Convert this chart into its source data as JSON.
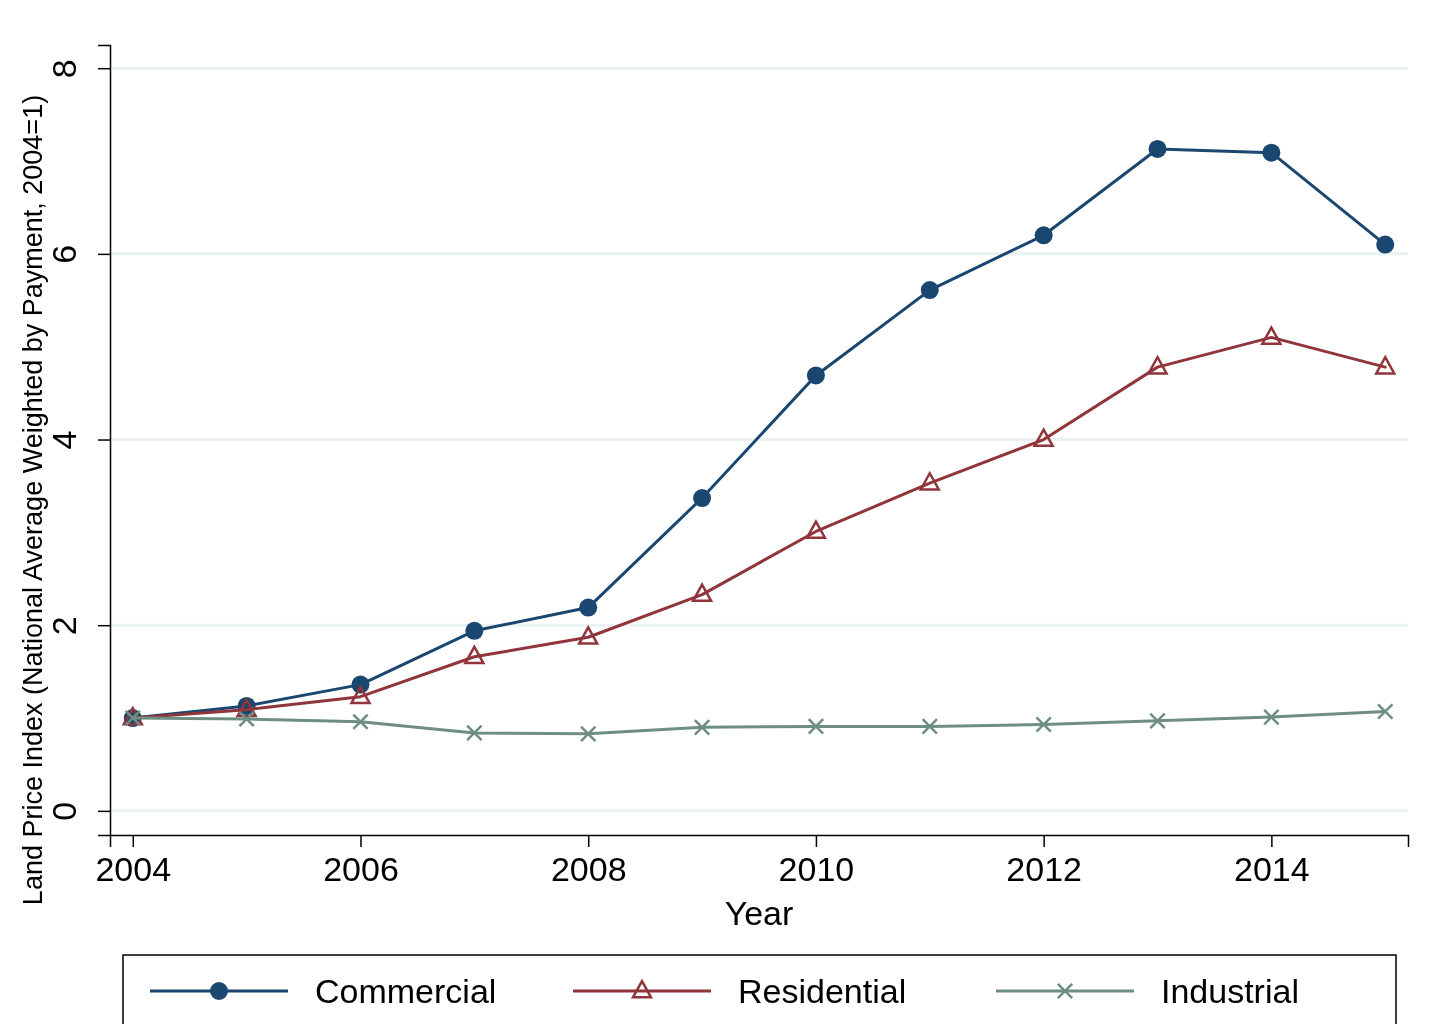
{
  "chart_data": {
    "type": "line",
    "xlabel": "Year",
    "ylabel": "Land Price Index (National Average Weighted by Payment, 2004=1)",
    "x": [
      2004,
      2005,
      2006,
      2007,
      2008,
      2009,
      2010,
      2011,
      2012,
      2013,
      2014,
      2015
    ],
    "series": [
      {
        "name": "Commercial",
        "color": "#1a476f",
        "marker": "circle",
        "values": [
          1.0,
          1.13,
          1.36,
          1.94,
          2.19,
          3.37,
          4.69,
          5.61,
          6.2,
          7.13,
          7.09,
          6.1
        ]
      },
      {
        "name": "Residential",
        "color": "#90353b",
        "marker": "triangle",
        "values": [
          1.0,
          1.09,
          1.23,
          1.66,
          1.87,
          2.33,
          3.01,
          3.53,
          4.0,
          4.78,
          5.1,
          4.78
        ]
      },
      {
        "name": "Industrial",
        "color": "#6e8e84",
        "marker": "cross",
        "values": [
          1.0,
          0.99,
          0.96,
          0.84,
          0.83,
          0.9,
          0.91,
          0.91,
          0.93,
          0.97,
          1.01,
          1.07
        ]
      }
    ],
    "xlim": [
      2003.8,
      2015.2
    ],
    "xticks": [
      2004,
      2006,
      2008,
      2010,
      2012,
      2014
    ],
    "ylim": [
      -0.26,
      8.25
    ],
    "yticks": [
      0,
      2,
      4,
      6,
      8
    ],
    "grid": "y",
    "legend": "bottom",
    "line_style": "solid"
  }
}
